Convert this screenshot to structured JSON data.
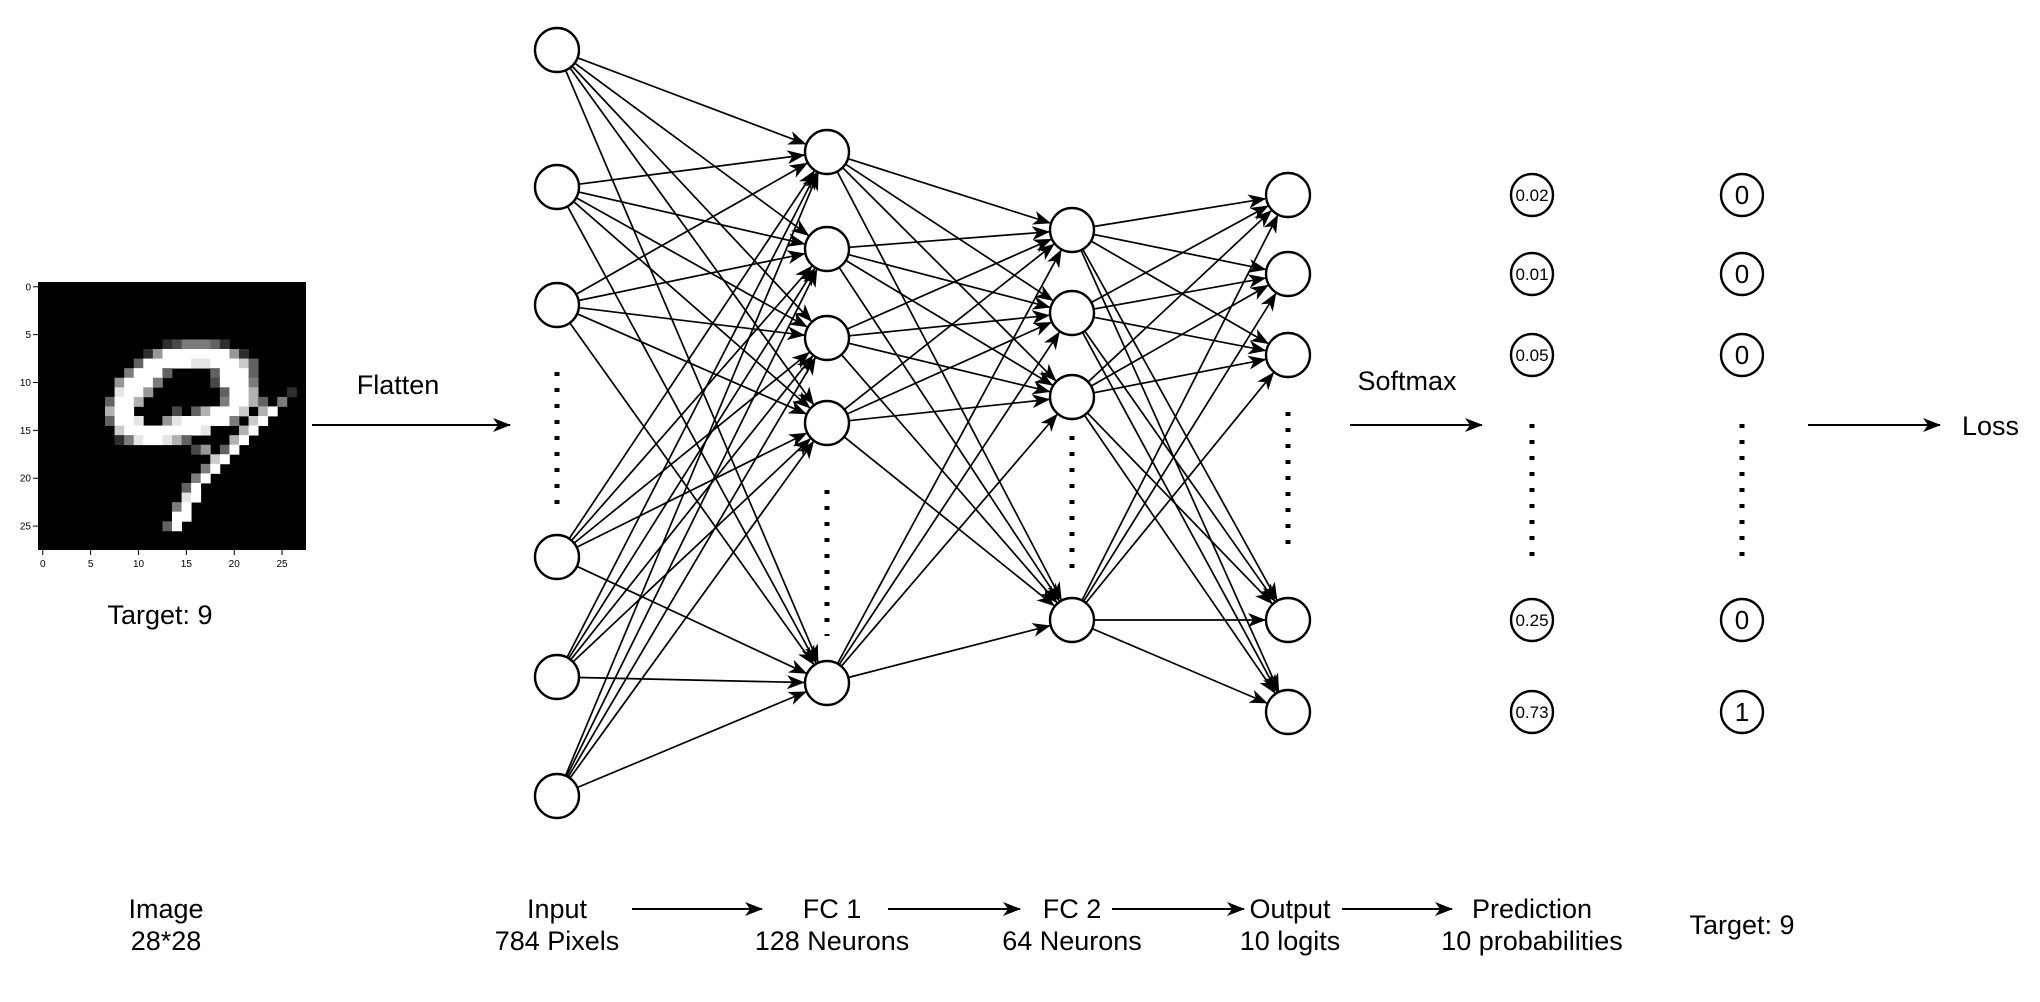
{
  "image": {
    "target_caption": "Target: 9",
    "caption_line1": "Image",
    "caption_line2": "28*28",
    "axis_ticks_x": [
      "0",
      "5",
      "10",
      "15",
      "20",
      "25"
    ],
    "axis_ticks_y": [
      "0",
      "5",
      "10",
      "15",
      "20",
      "25"
    ]
  },
  "steps": {
    "flatten": "Flatten",
    "softmax": "Softmax",
    "loss": "Loss"
  },
  "layers": [
    {
      "id": "input",
      "line1": "Input",
      "line2": "784 Pixels"
    },
    {
      "id": "fc1",
      "line1": "FC 1",
      "line2": "128 Neurons"
    },
    {
      "id": "fc2",
      "line1": "FC 2",
      "line2": "64 Neurons"
    },
    {
      "id": "output",
      "line1": "Output",
      "line2": "10 logits"
    },
    {
      "id": "prediction",
      "line1": "Prediction",
      "line2": "10 probabilities"
    }
  ],
  "target_label": "Target: 9",
  "probabilities": [
    "0.02",
    "0.01",
    "0.05",
    "0.25",
    "0.73"
  ],
  "targets": [
    "0",
    "0",
    "0",
    "0",
    "1"
  ]
}
